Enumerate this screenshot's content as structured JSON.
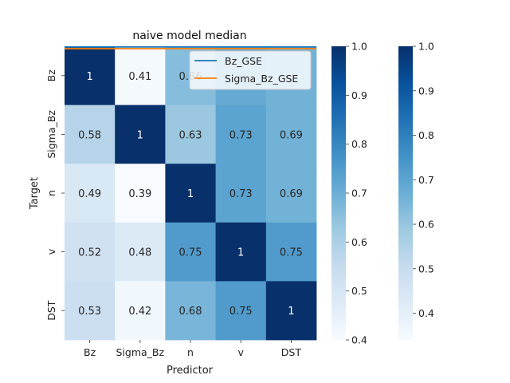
{
  "chart_data": {
    "type": "heatmap",
    "title": "naive model median",
    "xlabel": "Predictor",
    "ylabel": "Target",
    "x_categories": [
      "Bz",
      "Sigma_Bz",
      "n",
      "v",
      "DST"
    ],
    "y_categories": [
      "Bz",
      "Sigma_Bz",
      "n",
      "v",
      "DST"
    ],
    "values": [
      [
        1.0,
        0.41,
        0.66,
        0.71,
        0.69
      ],
      [
        0.58,
        1.0,
        0.63,
        0.73,
        0.69
      ],
      [
        0.49,
        0.39,
        1.0,
        0.73,
        0.69
      ],
      [
        0.52,
        0.48,
        0.75,
        1.0,
        0.75
      ],
      [
        0.53,
        0.42,
        0.68,
        0.75,
        1.0
      ]
    ],
    "cell_labels": [
      [
        "1",
        "0.41",
        "0.66",
        "",
        ""
      ],
      [
        "0.58",
        "1",
        "0.63",
        "0.73",
        "0.69"
      ],
      [
        "0.49",
        "0.39",
        "1",
        "0.73",
        "0.69"
      ],
      [
        "0.52",
        "0.48",
        "0.75",
        "1",
        "0.75"
      ],
      [
        "0.53",
        "0.42",
        "0.68",
        "0.75",
        "1"
      ]
    ],
    "colormap": "Blues",
    "colorbars": [
      {
        "range": [
          0.4,
          1.0
        ],
        "ticks": [
          "0.4",
          "0.5",
          "0.6",
          "0.7",
          "0.8",
          "0.9",
          "1.0"
        ]
      },
      {
        "range": [
          0.34,
          1.0
        ],
        "ticks": [
          "0.4",
          "0.5",
          "0.6",
          "0.7",
          "0.8",
          "0.9",
          "1.0"
        ]
      }
    ],
    "legend": {
      "placement": "top-right",
      "entries": [
        {
          "name": "Bz_GSE",
          "color": "#1f77b4"
        },
        {
          "name": "Sigma_Bz_GSE",
          "color": "#ff7f0e"
        }
      ]
    }
  }
}
